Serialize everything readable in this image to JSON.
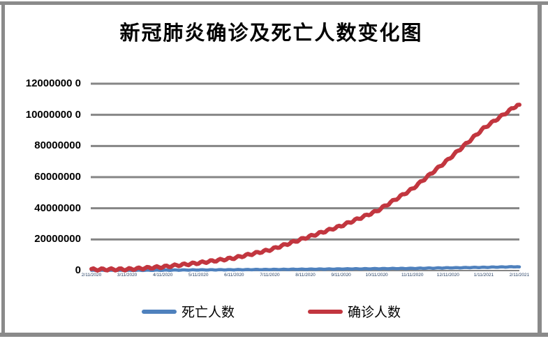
{
  "window": {
    "frame_color": "#8a8a8a",
    "background": "#ffffff"
  },
  "title": "新冠肺炎确诊及死亡人数变化图",
  "chart_data": {
    "type": "line",
    "title": "新冠肺炎确诊及死亡人数变化图",
    "x": [
      "2/11/2020",
      "3/11/2020",
      "4/11/2020",
      "5/11/2020",
      "6/11/2020",
      "7/11/2020",
      "8/11/2020",
      "9/11/2020",
      "10/11/2020",
      "11/11/2020",
      "12/11/2020",
      "1/11/2021",
      "2/11/2021"
    ],
    "series": [
      {
        "name": "死亡人数",
        "color": "#4f81bd",
        "values": [
          1100,
          4600,
          102000,
          287000,
          419000,
          561000,
          737000,
          905000,
          1070000,
          1280000,
          1590000,
          1940000,
          2360000
        ]
      },
      {
        "name": "确诊人数",
        "color": "#c2363f",
        "values": [
          45000,
          126000,
          1700000,
          4200000,
          7400000,
          12600000,
          20300000,
          28000000,
          37500000,
          51800000,
          70500000,
          90700000,
          106500000
        ]
      }
    ],
    "ylim": [
      0,
      120000000
    ],
    "y_ticks": [
      0,
      20000000,
      40000000,
      60000000,
      80000000,
      100000000,
      120000000
    ],
    "y_tick_labels": [
      "0",
      "20000000",
      "40000000",
      "60000000",
      "80000000",
      "10000000 0",
      "12000000 0"
    ],
    "grid": true,
    "gridline_color": "#858585",
    "x_tick_label_color": "#1f3a5f",
    "legend_position": "bottom"
  },
  "legend": {
    "items": [
      {
        "label": "死亡人数",
        "color": "#4f81bd"
      },
      {
        "label": "确诊人数",
        "color": "#c2363f"
      }
    ]
  }
}
